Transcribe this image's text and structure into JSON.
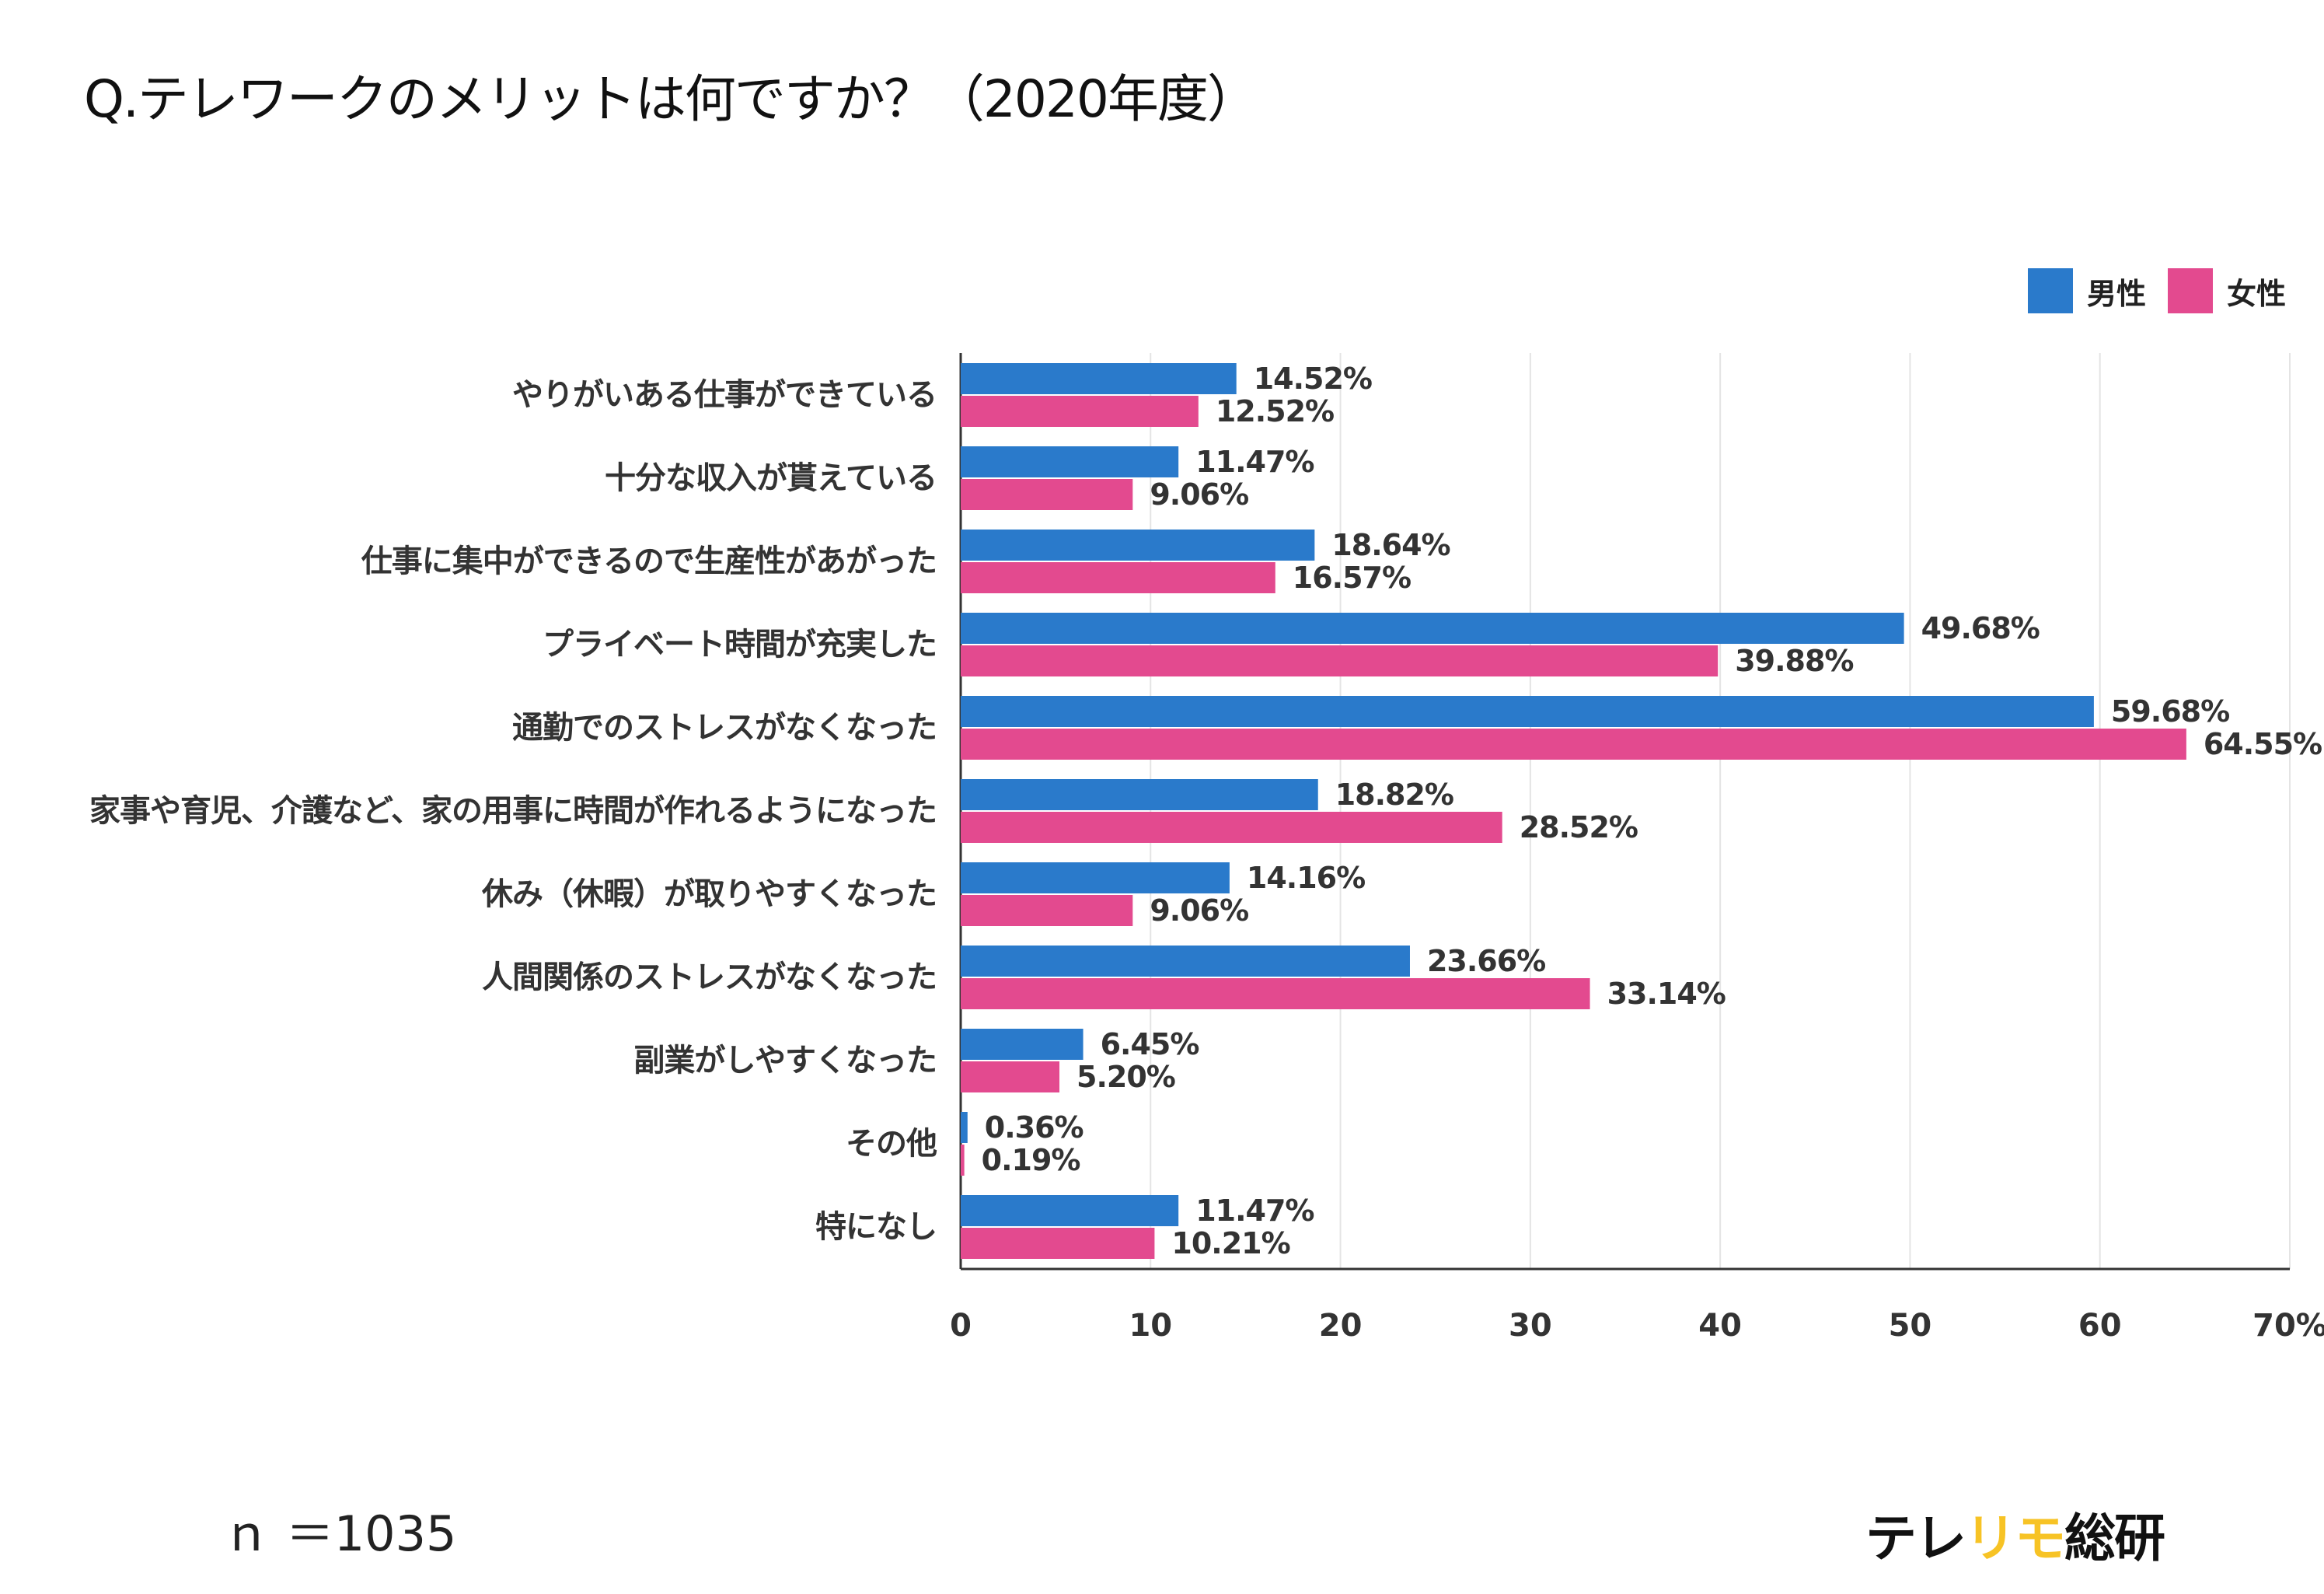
{
  "title": "Q.テレワークのメリットは何ですか？（2020年度）",
  "footer": {
    "n_note": "ｎ ＝1035",
    "logo_part1": "テレ",
    "logo_part2": "リモ",
    "logo_part3": "総研"
  },
  "colors": {
    "male": "#2a7acb",
    "female": "#e34a8f",
    "grid": "#e4e4e4",
    "logo_accent": "#f7c325"
  },
  "chart_data": {
    "type": "bar",
    "orientation": "horizontal",
    "title": "Q.テレワークのメリットは何ですか？（2020年度）",
    "categories": [
      "やりがいある仕事ができている",
      "十分な収入が貰えている",
      "仕事に集中ができるので生産性があがった",
      "プライベート時間が充実した",
      "通勤でのストレスがなくなった",
      "家事や育児、介護など、家の用事に時間が作れるようになった",
      "休み（休暇）が取りやすくなった",
      "人間関係のストレスがなくなった",
      "副業がしやすくなった",
      "その他",
      "特になし"
    ],
    "series": [
      {
        "name": "男性",
        "values": [
          14.52,
          11.47,
          18.64,
          49.68,
          59.68,
          18.82,
          14.16,
          23.66,
          6.45,
          0.36,
          11.47
        ]
      },
      {
        "name": "女性",
        "values": [
          12.52,
          9.06,
          16.57,
          39.88,
          64.55,
          28.52,
          9.06,
          33.14,
          5.2,
          0.19,
          10.21
        ]
      }
    ],
    "value_labels": [
      [
        "14.52%",
        "11.47%",
        "18.64%",
        "49.68%",
        "59.68%",
        "18.82%",
        "14.16%",
        "23.66%",
        "6.45%",
        "0.36%",
        "11.47%"
      ],
      [
        "12.52%",
        "9.06%",
        "16.57%",
        "39.88%",
        "64.55%",
        "28.52%",
        "9.06%",
        "33.14%",
        "5.20%",
        "0.19%",
        "10.21%"
      ]
    ],
    "xlim": [
      0,
      70
    ],
    "xticks": [
      "0",
      "10",
      "20",
      "30",
      "40",
      "50",
      "60",
      "70%"
    ],
    "grid": true,
    "legend_position": "top-right"
  }
}
